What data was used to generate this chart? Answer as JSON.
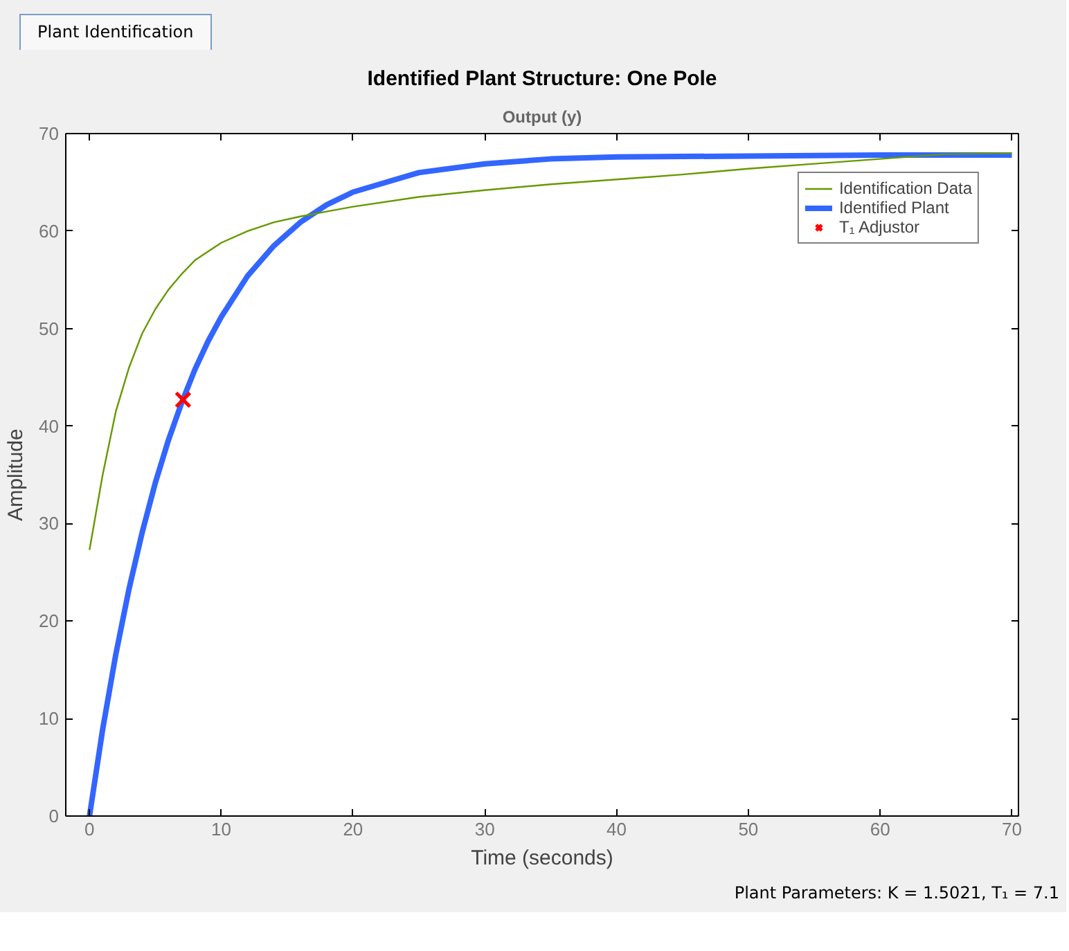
{
  "chart_data": {
    "type": "line",
    "title": "Identified Plant Structure: One Pole",
    "subtitle": "Output (y)",
    "xlabel": "Time (seconds)",
    "ylabel": "Amplitude",
    "xlim": [
      -1.8,
      70.5
    ],
    "ylim": [
      0,
      70
    ],
    "xticks": [
      0,
      10,
      20,
      30,
      40,
      50,
      60,
      70
    ],
    "yticks": [
      0,
      10,
      20,
      30,
      40,
      50,
      60,
      70
    ],
    "grid": false,
    "legend": "top right",
    "annotations": [
      "Plant Identification",
      "Plant Parameters: K = 1.5021, T₁ = 7.1"
    ],
    "series": [
      {
        "name": "Identification Data",
        "color": "#669900",
        "x": [
          0,
          1,
          2,
          3,
          4,
          5,
          6,
          7,
          8,
          10,
          12,
          14,
          16,
          18,
          20,
          25,
          30,
          35,
          40,
          45,
          50,
          55,
          60,
          65,
          70
        ],
        "values": [
          27.3,
          35,
          41.5,
          46,
          49.5,
          52,
          54,
          55.6,
          57,
          58.8,
          60,
          60.9,
          61.5,
          62,
          62.5,
          63.5,
          64.2,
          64.8,
          65.3,
          65.8,
          66.4,
          66.9,
          67.4,
          67.9,
          68.0
        ]
      },
      {
        "name": "Identified Plant",
        "color": "#3366ff",
        "x": [
          0,
          1,
          2,
          3,
          4,
          5,
          6,
          7,
          8,
          9,
          10,
          12,
          14,
          16,
          18,
          20,
          25,
          30,
          35,
          40,
          50,
          60,
          70
        ],
        "values": [
          0,
          8.9,
          16.6,
          23.3,
          29.1,
          34.2,
          38.6,
          42.4,
          45.8,
          48.7,
          51.2,
          55.4,
          58.5,
          60.9,
          62.7,
          64.0,
          66.0,
          66.9,
          67.4,
          67.6,
          67.7,
          67.8,
          67.8
        ]
      },
      {
        "name": "T₁ Adjustor",
        "color": "#ff0000",
        "type": "scatter",
        "marker": "cross",
        "x": [
          7.1
        ],
        "values": [
          42.7
        ]
      }
    ]
  }
}
